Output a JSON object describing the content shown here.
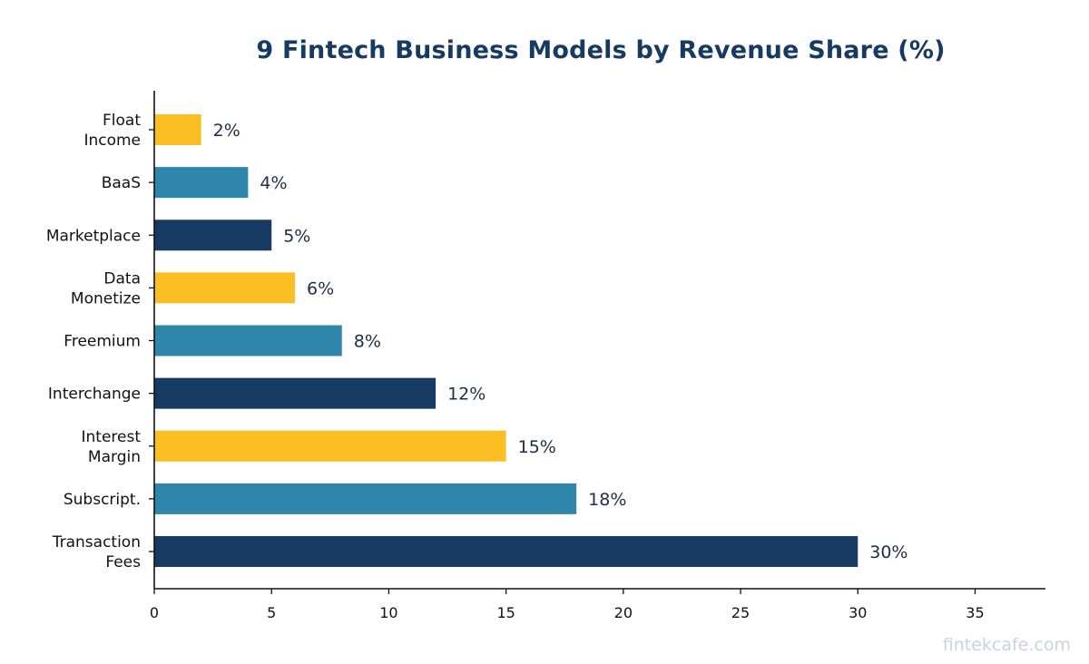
{
  "chart_data": {
    "type": "bar",
    "orientation": "horizontal",
    "title": "9 Fintech Business Models by Revenue Share (%)",
    "xlabel": "",
    "ylabel": "",
    "categories": [
      [
        "Transaction",
        "Fees"
      ],
      [
        "Subscript."
      ],
      [
        "Interest",
        "Margin"
      ],
      [
        "Interchange"
      ],
      [
        "Freemium"
      ],
      [
        "Data",
        "Monetize"
      ],
      [
        "Marketplace"
      ],
      [
        "BaaS"
      ],
      [
        "Float",
        "Income"
      ]
    ],
    "values": [
      30,
      18,
      15,
      12,
      8,
      6,
      5,
      4,
      2
    ],
    "value_labels": [
      "30%",
      "18%",
      "15%",
      "12%",
      "8%",
      "6%",
      "5%",
      "4%",
      "2%"
    ],
    "bar_colors": [
      "#173a63",
      "#2e87ab",
      "#fbbf24",
      "#173a63",
      "#2e87ab",
      "#fbbf24",
      "#173a63",
      "#2e87ab",
      "#fbbf24"
    ],
    "xlim": [
      0,
      38
    ],
    "xticks": [
      0,
      5,
      10,
      15,
      20,
      25,
      30,
      35
    ],
    "grid": false,
    "legend": "none"
  },
  "colors": {
    "title": "#173a63",
    "value_label": "#1f2d44",
    "axis": "#111111",
    "watermark": "#c8d3de"
  },
  "watermark": "fintekcafe.com"
}
